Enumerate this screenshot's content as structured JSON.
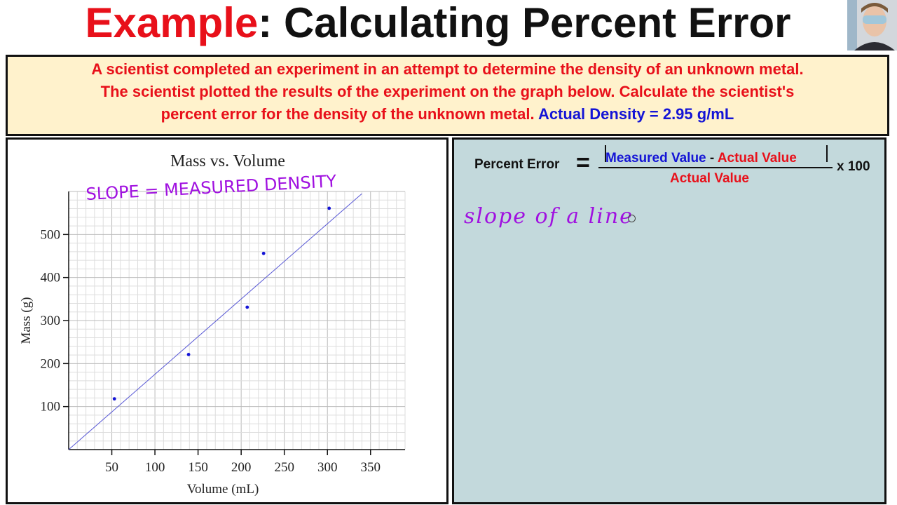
{
  "title": {
    "highlight": "Example",
    "rest": ": Calculating Percent Error"
  },
  "problem": {
    "line1": "A scientist completed an experiment in an attempt to determine the density of an unknown metal.",
    "line2": "The scientist plotted the results of the experiment on the graph below.  Calculate the scientist's",
    "line3": "percent error for the density of the unknown metal.",
    "actual": "Actual Density = 2.95 g/mL"
  },
  "annotations": {
    "slope_note": "SLOPE = MEASURED DENSITY",
    "side_note": "slope of a line"
  },
  "formula": {
    "label": "Percent Error",
    "equals": "=",
    "numerator_measured": "Measured Value",
    "numerator_minus": "-",
    "numerator_actual": "Actual Value",
    "denominator": "Actual Value",
    "times": "x 100"
  },
  "colors": {
    "accent_red": "#e8101a",
    "accent_blue": "#1414d6",
    "problem_bg": "#fff2cc",
    "formula_bg": "#c3d9dc",
    "ink_purple": "#a010e0"
  },
  "chart_data": {
    "type": "scatter",
    "title": "Mass vs. Volume",
    "xlabel": "Volume (mL)",
    "ylabel": "Mass (g)",
    "xlim": [
      0,
      390
    ],
    "ylim": [
      0,
      600
    ],
    "xticks": [
      50,
      100,
      150,
      200,
      250,
      300,
      350
    ],
    "yticks": [
      100,
      200,
      300,
      400,
      500
    ],
    "grid": true,
    "points": [
      {
        "x": 53,
        "y": 118
      },
      {
        "x": 139,
        "y": 221
      },
      {
        "x": 207,
        "y": 331
      },
      {
        "x": 226,
        "y": 456
      },
      {
        "x": 302,
        "y": 561
      }
    ],
    "trendline": {
      "x": [
        0,
        340
      ],
      "y": [
        0,
        595
      ]
    }
  }
}
